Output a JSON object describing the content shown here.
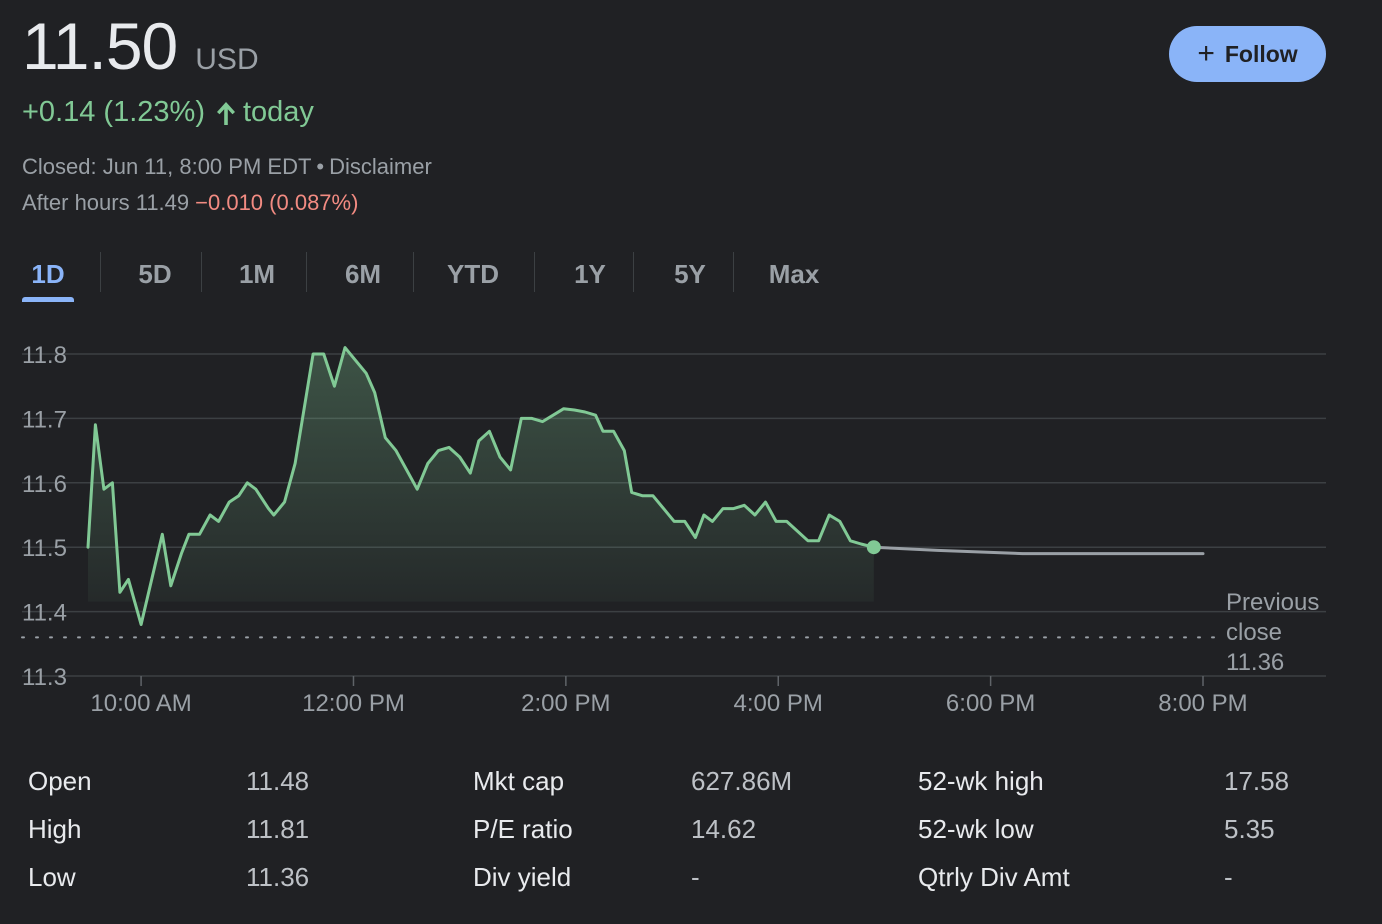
{
  "quote": {
    "price": "11.50",
    "currency": "USD",
    "change": "+0.14 (1.23%)",
    "change_suffix": "today",
    "closed_text": "Closed: Jun 11, 8:00 PM EDT",
    "separator": "•",
    "disclaimer": "Disclaimer",
    "after_hours_label": "After hours 11.49",
    "after_hours_change": "−0.010 (0.087%)"
  },
  "follow_button": {
    "label": "Follow"
  },
  "tabs": [
    "1D",
    "5D",
    "1M",
    "6M",
    "YTD",
    "1Y",
    "5Y",
    "Max"
  ],
  "active_tab": "1D",
  "colors": {
    "positive": "#81c995",
    "negative": "#f28b82",
    "accent": "#8ab4f8",
    "after_hours_line": "#9aa0a6"
  },
  "chart_data": {
    "type": "line",
    "y_ticks": [
      "11.8",
      "11.7",
      "11.6",
      "11.5",
      "11.4",
      "11.3"
    ],
    "ylim": [
      11.3,
      11.8
    ],
    "x_ticks": [
      "10:00 AM",
      "12:00 PM",
      "2:00 PM",
      "4:00 PM",
      "6:00 PM",
      "8:00 PM"
    ],
    "x_tick_hours": [
      10,
      12,
      14,
      16,
      18,
      20
    ],
    "xlim_hours": [
      9.5,
      20.0
    ],
    "previous_close": {
      "label_line1": "Previous",
      "label_line2": "close",
      "value": "11.36",
      "y": 11.36
    },
    "series": [
      {
        "session": "regular",
        "points": [
          [
            9.5,
            11.5
          ],
          [
            9.57,
            11.69
          ],
          [
            9.65,
            11.59
          ],
          [
            9.73,
            11.6
          ],
          [
            9.8,
            11.43
          ],
          [
            9.88,
            11.45
          ],
          [
            10.0,
            11.38
          ],
          [
            10.1,
            11.45
          ],
          [
            10.2,
            11.52
          ],
          [
            10.28,
            11.44
          ],
          [
            10.38,
            11.49
          ],
          [
            10.45,
            11.52
          ],
          [
            10.55,
            11.52
          ],
          [
            10.65,
            11.55
          ],
          [
            10.73,
            11.54
          ],
          [
            10.83,
            11.57
          ],
          [
            10.92,
            11.58
          ],
          [
            11.0,
            11.6
          ],
          [
            11.08,
            11.59
          ],
          [
            11.2,
            11.56
          ],
          [
            11.25,
            11.55
          ],
          [
            11.35,
            11.57
          ],
          [
            11.45,
            11.63
          ],
          [
            11.55,
            11.73
          ],
          [
            11.62,
            11.8
          ],
          [
            11.72,
            11.8
          ],
          [
            11.82,
            11.75
          ],
          [
            11.92,
            11.81
          ],
          [
            12.02,
            11.79
          ],
          [
            12.12,
            11.77
          ],
          [
            12.2,
            11.74
          ],
          [
            12.3,
            11.67
          ],
          [
            12.4,
            11.65
          ],
          [
            12.5,
            11.62
          ],
          [
            12.6,
            11.59
          ],
          [
            12.7,
            11.63
          ],
          [
            12.8,
            11.65
          ],
          [
            12.9,
            11.655
          ],
          [
            13.0,
            11.64
          ],
          [
            13.1,
            11.615
          ],
          [
            13.18,
            11.665
          ],
          [
            13.28,
            11.68
          ],
          [
            13.38,
            11.64
          ],
          [
            13.48,
            11.62
          ],
          [
            13.58,
            11.7
          ],
          [
            13.68,
            11.7
          ],
          [
            13.78,
            11.695
          ],
          [
            13.88,
            11.705
          ],
          [
            13.98,
            11.715
          ],
          [
            14.08,
            11.713
          ],
          [
            14.18,
            11.71
          ],
          [
            14.28,
            11.705
          ],
          [
            14.35,
            11.68
          ],
          [
            14.45,
            11.68
          ],
          [
            14.55,
            11.65
          ],
          [
            14.62,
            11.585
          ],
          [
            14.72,
            11.58
          ],
          [
            14.82,
            11.58
          ],
          [
            14.92,
            11.56
          ],
          [
            15.02,
            11.54
          ],
          [
            15.12,
            11.54
          ],
          [
            15.22,
            11.515
          ],
          [
            15.3,
            11.55
          ],
          [
            15.38,
            11.54
          ],
          [
            15.48,
            11.56
          ],
          [
            15.58,
            11.56
          ],
          [
            15.68,
            11.565
          ],
          [
            15.78,
            11.55
          ],
          [
            15.88,
            11.57
          ],
          [
            15.98,
            11.54
          ],
          [
            16.08,
            11.54
          ],
          [
            16.18,
            11.525
          ],
          [
            16.28,
            11.51
          ],
          [
            16.38,
            11.51
          ],
          [
            16.48,
            11.55
          ],
          [
            16.58,
            11.54
          ],
          [
            16.68,
            11.51
          ],
          [
            16.78,
            11.505
          ],
          [
            16.9,
            11.5
          ]
        ]
      },
      {
        "session": "after-hours",
        "points": [
          [
            16.9,
            11.5
          ],
          [
            17.5,
            11.495
          ],
          [
            18.3,
            11.49
          ],
          [
            20.0,
            11.49
          ]
        ]
      }
    ],
    "current_point": [
      16.9,
      11.5
    ],
    "grid": true
  },
  "stats": {
    "col1": [
      {
        "label": "Open",
        "value": "11.48"
      },
      {
        "label": "High",
        "value": "11.81"
      },
      {
        "label": "Low",
        "value": "11.36"
      }
    ],
    "col2": [
      {
        "label": "Mkt cap",
        "value": "627.86M"
      },
      {
        "label": "P/E ratio",
        "value": "14.62"
      },
      {
        "label": "Div yield",
        "value": "-"
      }
    ],
    "col3": [
      {
        "label": "52-wk high",
        "value": "17.58"
      },
      {
        "label": "52-wk low",
        "value": "5.35"
      },
      {
        "label": "Qtrly Div Amt",
        "value": "-"
      }
    ]
  }
}
